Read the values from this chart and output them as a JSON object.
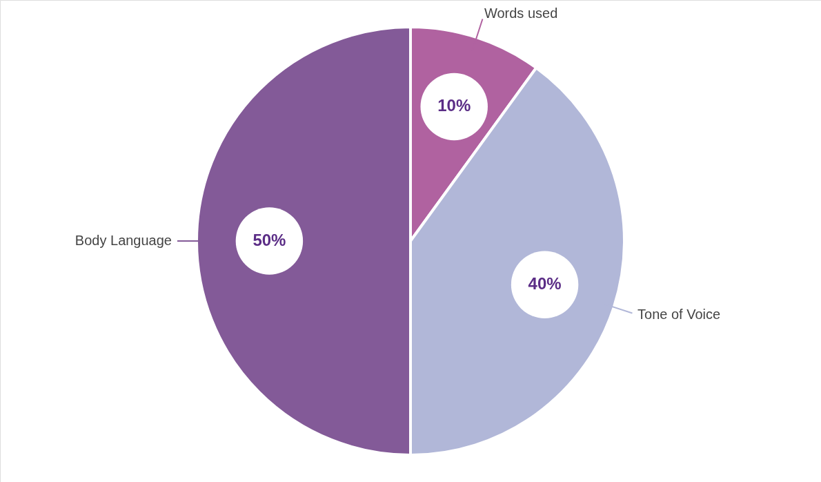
{
  "chart_data": {
    "type": "pie",
    "categories": [
      "Words used",
      "Tone of Voice",
      "Body Language"
    ],
    "values": [
      10,
      40,
      50
    ],
    "colors": [
      "#b062a0",
      "#b1b7d8",
      "#835a98"
    ],
    "value_labels": [
      "10%",
      "40%",
      "50%"
    ]
  }
}
